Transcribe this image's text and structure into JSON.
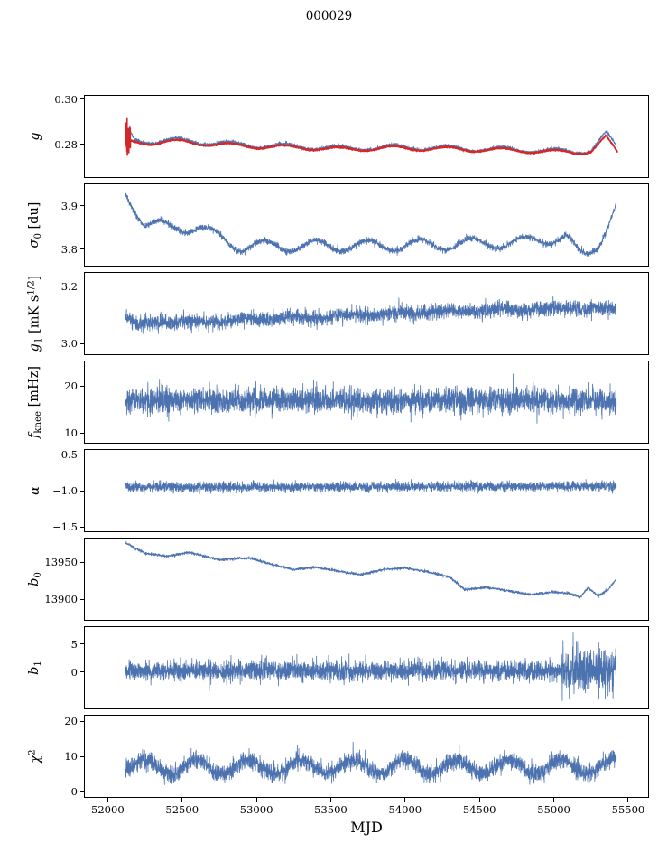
{
  "title": "000029",
  "colors": {
    "line_blue": "#4c72b0",
    "line_red": "#d62728",
    "axis": "#000000",
    "background": "#ffffff"
  },
  "chart_data": {
    "type": "line",
    "title": "000029",
    "xlabel": "MJD",
    "grid": false,
    "legend": "none",
    "xlim": [
      51840,
      55640
    ],
    "xticks": [
      {
        "v": 52000,
        "label": "52000"
      },
      {
        "v": 52500,
        "label": "52500"
      },
      {
        "v": 53000,
        "label": "53000"
      },
      {
        "v": 53500,
        "label": "53500"
      },
      {
        "v": 54000,
        "label": "54000"
      },
      {
        "v": 54500,
        "label": "54500"
      },
      {
        "v": 55000,
        "label": "55000"
      },
      {
        "v": 55500,
        "label": "55500"
      }
    ],
    "panels": [
      {
        "id": "g",
        "ylabel": [
          {
            "t": "g",
            "i": true
          }
        ],
        "ylim": [
          0.265,
          0.302
        ],
        "yticks": [
          {
            "v": 0.28,
            "label": "0.28"
          },
          {
            "v": 0.3,
            "label": "0.30"
          }
        ],
        "series": [
          {
            "name": "gain-measured",
            "color": "#4c72b0",
            "lw": 0.8,
            "seed": 11,
            "x_start": 52120,
            "x_end": 55420,
            "step": 1,
            "trend": [
              [
                52120,
                0.2825
              ],
              [
                52140,
                0.2862
              ],
              [
                52180,
                0.2822
              ],
              [
                52300,
                0.2812
              ],
              [
                52500,
                0.2818
              ],
              [
                52700,
                0.2806
              ],
              [
                53000,
                0.2796
              ],
              [
                53300,
                0.279
              ],
              [
                53600,
                0.2782
              ],
              [
                53900,
                0.2788
              ],
              [
                54200,
                0.2785
              ],
              [
                54500,
                0.278
              ],
              [
                54800,
                0.2776
              ],
              [
                55000,
                0.277
              ],
              [
                55150,
                0.2768
              ],
              [
                55250,
                0.2776
              ],
              [
                55350,
                0.2848
              ],
              [
                55420,
                0.2788
              ]
            ],
            "osc": {
              "amp": 0.0011,
              "period": 365,
              "phase": 2.0
            },
            "noise": 0.00035
          },
          {
            "name": "gain-smoothed",
            "color": "#d62728",
            "lw": 1.6,
            "seed": 12,
            "x_start": 52120,
            "x_end": 55430,
            "step": 1,
            "trend": [
              [
                52120,
                0.2805
              ],
              [
                52160,
                0.2812
              ],
              [
                52300,
                0.2806
              ],
              [
                52500,
                0.2812
              ],
              [
                52700,
                0.28
              ],
              [
                53000,
                0.279
              ],
              [
                53300,
                0.2785
              ],
              [
                53600,
                0.2777
              ],
              [
                53900,
                0.2783
              ],
              [
                54200,
                0.278
              ],
              [
                54500,
                0.2776
              ],
              [
                54800,
                0.2772
              ],
              [
                55000,
                0.2766
              ],
              [
                55150,
                0.2764
              ],
              [
                55250,
                0.277
              ],
              [
                55350,
                0.2832
              ],
              [
                55430,
                0.2758
              ]
            ],
            "osc": {
              "amp": 0.0009,
              "period": 365,
              "phase": 2.0
            },
            "noise": 0.00015,
            "noise_segments": [
              {
                "from": 52120,
                "to": 52152,
                "sigma": 0.0042
              }
            ]
          }
        ]
      },
      {
        "id": "sigma0-du",
        "ylabel": [
          {
            "t": "σ",
            "i": true
          },
          {
            "t": "0",
            "sub": true
          },
          {
            "t": " [du]"
          }
        ],
        "ylim": [
          3.76,
          3.952
        ],
        "yticks": [
          {
            "v": 3.8,
            "label": "3.8"
          },
          {
            "v": 3.9,
            "label": "3.9"
          }
        ],
        "series": [
          {
            "name": "sigma0-du",
            "color": "#4c72b0",
            "lw": 0.8,
            "seed": 21,
            "x_start": 52120,
            "x_end": 55420,
            "step": 1,
            "trend": [
              [
                52120,
                3.935
              ],
              [
                52250,
                3.855
              ],
              [
                52600,
                3.85
              ],
              [
                52900,
                3.806
              ],
              [
                53200,
                3.808
              ],
              [
                53800,
                3.808
              ],
              [
                54400,
                3.812
              ],
              [
                54800,
                3.816
              ],
              [
                55080,
                3.83
              ],
              [
                55160,
                3.79
              ],
              [
                55220,
                3.783
              ],
              [
                55300,
                3.815
              ],
              [
                55420,
                3.902
              ]
            ],
            "osc": {
              "amp": 0.013,
              "period": 350,
              "phase": 3.73
            },
            "noise": 0.0035
          }
        ]
      },
      {
        "id": "g1-mks",
        "ylabel": [
          {
            "t": "g",
            "i": true
          },
          {
            "t": "1",
            "sub": true
          },
          {
            "t": " [mK s"
          },
          {
            "t": "1/2",
            "sup": true
          },
          {
            "t": "]"
          }
        ],
        "ylim": [
          2.96,
          3.25
        ],
        "yticks": [
          {
            "v": 3.0,
            "label": "3.0"
          },
          {
            "v": 3.2,
            "label": "3.2"
          }
        ],
        "series": [
          {
            "name": "white-noise-mks",
            "color": "#4c72b0",
            "lw": 0.8,
            "seed": 31,
            "x_start": 52120,
            "x_end": 55420,
            "step": 1,
            "trend": [
              [
                52120,
                3.095
              ],
              [
                52200,
                3.065
              ],
              [
                52350,
                3.075
              ],
              [
                52600,
                3.075
              ],
              [
                52900,
                3.085
              ],
              [
                53300,
                3.09
              ],
              [
                53700,
                3.1
              ],
              [
                54100,
                3.108
              ],
              [
                54500,
                3.115
              ],
              [
                54900,
                3.122
              ],
              [
                55200,
                3.125
              ],
              [
                55420,
                3.118
              ]
            ],
            "osc": {
              "amp": 0.004,
              "period": 350,
              "phase": 0
            },
            "noise": 0.013
          }
        ]
      },
      {
        "id": "fknee",
        "ylabel": [
          {
            "t": "f",
            "i": true
          },
          {
            "t": "knee",
            "sub": true
          },
          {
            "t": " [mHz]"
          }
        ],
        "ylim": [
          7.7,
          25.4
        ],
        "yticks": [
          {
            "v": 10,
            "label": "10"
          },
          {
            "v": 20,
            "label": "20"
          }
        ],
        "series": [
          {
            "name": "fknee",
            "color": "#4c72b0",
            "lw": 0.8,
            "seed": 41,
            "x_start": 52120,
            "x_end": 55420,
            "step": 1,
            "trend": [
              [
                52120,
                17.0
              ],
              [
                55420,
                16.8
              ]
            ],
            "noise": 1.35
          }
        ]
      },
      {
        "id": "alpha",
        "ylabel": [
          {
            "t": "α",
            "i": true
          }
        ],
        "ylim": [
          -1.575,
          -0.425
        ],
        "yticks": [
          {
            "v": -0.5,
            "label": "−0.5"
          },
          {
            "v": -1.0,
            "label": "−1.0"
          },
          {
            "v": -1.5,
            "label": "−1.5"
          }
        ],
        "series": [
          {
            "name": "alpha",
            "color": "#4c72b0",
            "lw": 0.8,
            "seed": 51,
            "x_start": 52120,
            "x_end": 55420,
            "step": 1,
            "trend": [
              [
                52120,
                -0.955
              ],
              [
                55420,
                -0.94
              ]
            ],
            "noise": 0.032
          }
        ]
      },
      {
        "id": "b0",
        "ylabel": [
          {
            "t": "b",
            "i": true
          },
          {
            "t": "0",
            "sub": true
          }
        ],
        "ylim": [
          13871,
          13983
        ],
        "yticks": [
          {
            "v": 13900,
            "label": "13900"
          },
          {
            "v": 13950,
            "label": "13950"
          }
        ],
        "series": [
          {
            "name": "baseline-b0",
            "color": "#4c72b0",
            "lw": 0.8,
            "seed": 61,
            "x_start": 52120,
            "x_end": 55420,
            "step": 1,
            "trend": [
              [
                52120,
                13976
              ],
              [
                52250,
                13962
              ],
              [
                52400,
                13958
              ],
              [
                52550,
                13963
              ],
              [
                52750,
                13953
              ],
              [
                52950,
                13956
              ],
              [
                53100,
                13947
              ],
              [
                53250,
                13940
              ],
              [
                53400,
                13943
              ],
              [
                53550,
                13938
              ],
              [
                53700,
                13933
              ],
              [
                53850,
                13940
              ],
              [
                54000,
                13942
              ],
              [
                54150,
                13937
              ],
              [
                54300,
                13930
              ],
              [
                54400,
                13913
              ],
              [
                54550,
                13916
              ],
              [
                54700,
                13911
              ],
              [
                54850,
                13906
              ],
              [
                55000,
                13910
              ],
              [
                55100,
                13908
              ],
              [
                55180,
                13903
              ],
              [
                55230,
                13916
              ],
              [
                55300,
                13904
              ],
              [
                55360,
                13912
              ],
              [
                55420,
                13927
              ]
            ],
            "noise": 0.9
          }
        ]
      },
      {
        "id": "b1",
        "ylabel": [
          {
            "t": "b",
            "i": true
          },
          {
            "t": "1",
            "sub": true
          }
        ],
        "ylim": [
          -6.6,
          8.2
        ],
        "yticks": [
          {
            "v": 0,
            "label": "0"
          },
          {
            "v": 5,
            "label": "5"
          }
        ],
        "series": [
          {
            "name": "baseline-b1",
            "color": "#4c72b0",
            "lw": 0.8,
            "seed": 71,
            "x_start": 52120,
            "x_end": 55420,
            "step": 1,
            "trend": [
              [
                52120,
                0.3
              ],
              [
                55420,
                0.3
              ]
            ],
            "noise": 0.85,
            "noise_segments": [
              {
                "from": 55050,
                "to": 55420,
                "sigma": 1.8
              }
            ],
            "spikes": [
              [
                55130,
                7.2
              ],
              [
                55160,
                5.5
              ],
              [
                55345,
                -4.8
              ],
              [
                55365,
                -4.2
              ]
            ]
          }
        ]
      },
      {
        "id": "chi2",
        "ylabel": [
          {
            "t": "χ",
            "i": true
          },
          {
            "t": "2",
            "sup": true
          }
        ],
        "ylim": [
          -1.8,
          21.8
        ],
        "yticks": [
          {
            "v": 0,
            "label": "0"
          },
          {
            "v": 10,
            "label": "10"
          },
          {
            "v": 20,
            "label": "20"
          }
        ],
        "series": [
          {
            "name": "chi2",
            "color": "#4c72b0",
            "lw": 0.8,
            "seed": 81,
            "x_start": 52120,
            "x_end": 55420,
            "step": 1,
            "trend": [
              [
                52120,
                7.0
              ],
              [
                55420,
                7.2
              ]
            ],
            "osc": {
              "amp": 2.0,
              "period": 350,
              "phase": -0.76
            },
            "noise": 1.25
          }
        ]
      }
    ]
  }
}
